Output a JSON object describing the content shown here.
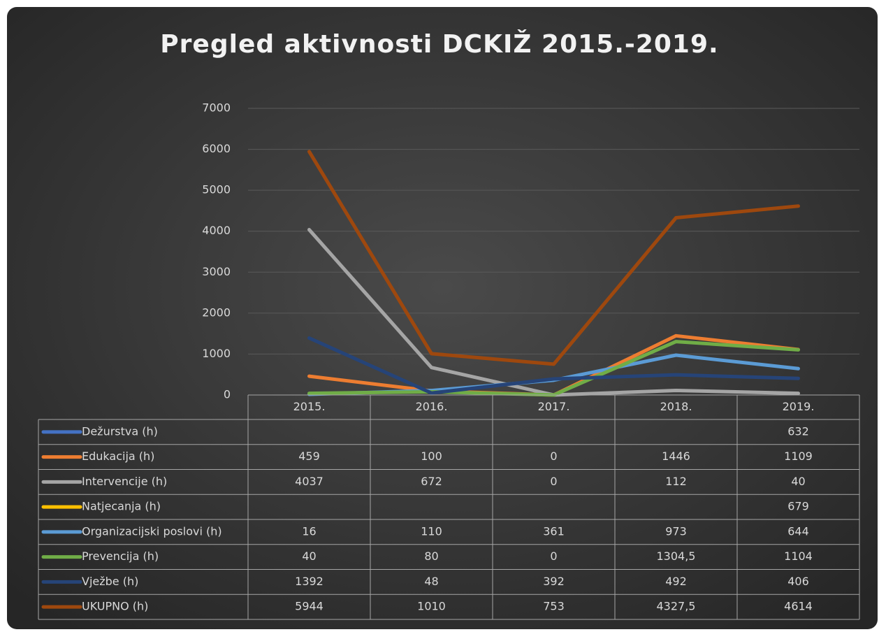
{
  "chart_data": {
    "type": "line",
    "title": "Pregled aktivnosti DCKIŽ 2015.-2019.",
    "categories": [
      "2015.",
      "2016.",
      "2017.",
      "2018.",
      "2019."
    ],
    "ylim": [
      0,
      7000
    ],
    "yticks": [
      0,
      1000,
      2000,
      3000,
      4000,
      5000,
      6000,
      7000
    ],
    "grid": true,
    "series": [
      {
        "name": "Dežurstva (h)",
        "color": "#4472c4",
        "values": [
          null,
          null,
          null,
          null,
          632
        ]
      },
      {
        "name": "Edukacija (h)",
        "color": "#ed7d31",
        "values": [
          459,
          100,
          0,
          1446,
          1109
        ]
      },
      {
        "name": "Intervencije (h)",
        "color": "#a5a5a5",
        "values": [
          4037,
          672,
          0,
          112,
          40
        ]
      },
      {
        "name": "Natjecanja (h)",
        "color": "#ffc000",
        "values": [
          null,
          null,
          null,
          null,
          679
        ]
      },
      {
        "name": "Organizacijski poslovi (h)",
        "color": "#5b9bd5",
        "values": [
          16,
          110,
          361,
          973,
          644
        ]
      },
      {
        "name": "Prevencija (h)",
        "color": "#70ad47",
        "values": [
          40,
          80,
          0,
          1304.5,
          1104
        ],
        "value_labels": [
          "40",
          "80",
          "0",
          "1304,5",
          "1104"
        ]
      },
      {
        "name": "Vježbe (h)",
        "color": "#264478",
        "values": [
          1392,
          48,
          392,
          492,
          406
        ]
      },
      {
        "name": "UKUPNO (h)",
        "color": "#9e480e",
        "values": [
          5944,
          1010,
          753,
          4327.5,
          4614
        ],
        "value_labels": [
          "5944",
          "1010",
          "753",
          "4327,5",
          "4614"
        ]
      }
    ]
  }
}
